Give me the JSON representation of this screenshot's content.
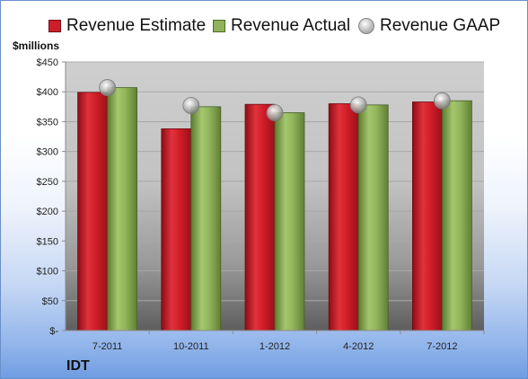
{
  "legend": {
    "estimate_label": "Revenue Estimate",
    "actual_label": "Revenue Actual",
    "gaap_label": "Revenue GAAP"
  },
  "unit_label": "$millions",
  "company_label": "IDT",
  "colors": {
    "estimate": "#cc1f2a",
    "actual": "#8fb25a",
    "gaap": "#b8b8b8"
  },
  "chart_data": {
    "type": "bar",
    "categories": [
      "7-2011",
      "10-2011",
      "1-2012",
      "4-2012",
      "7-2012"
    ],
    "series": [
      {
        "name": "Revenue Estimate",
        "values": [
          399,
          338,
          379,
          380,
          383
        ]
      },
      {
        "name": "Revenue Actual",
        "values": [
          407,
          375,
          365,
          378,
          385
        ]
      },
      {
        "name": "Revenue GAAP",
        "values": [
          407,
          377,
          365,
          378,
          385
        ]
      }
    ],
    "ylim": [
      0,
      450
    ],
    "yticks": [
      "$-",
      "$50",
      "$100",
      "$150",
      "$200",
      "$250",
      "$300",
      "$350",
      "$400",
      "$450"
    ],
    "ytick_values": [
      0,
      50,
      100,
      150,
      200,
      250,
      300,
      350,
      400,
      450
    ],
    "grid": true,
    "legend_position": "top"
  }
}
